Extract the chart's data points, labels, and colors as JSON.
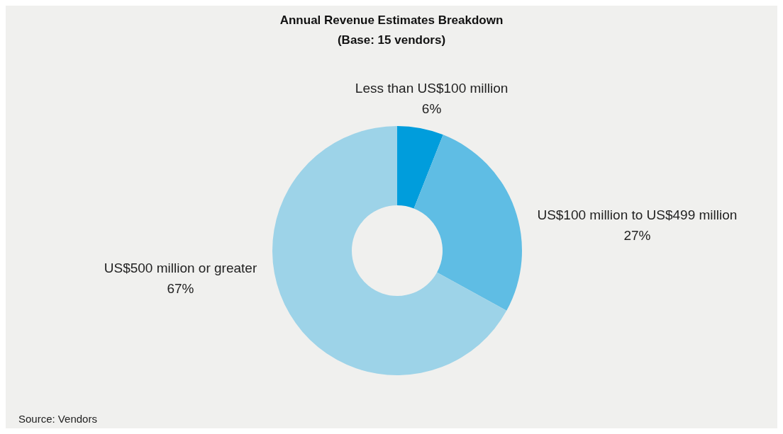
{
  "chart_data": {
    "type": "donut",
    "title": "Annual Revenue Estimates Breakdown",
    "subtitle": "(Base: 15 vendors)",
    "categories": [
      "Less than US$100 million",
      "US$100 million to US$499 million",
      "US$500 million or greater"
    ],
    "values": [
      6,
      27,
      67
    ],
    "colors": [
      "#009ddc",
      "#5fbde4",
      "#9dd3e8"
    ],
    "value_labels": [
      "6%",
      "27%",
      "67%"
    ],
    "annotations": [
      "Source: Vendors"
    ]
  }
}
